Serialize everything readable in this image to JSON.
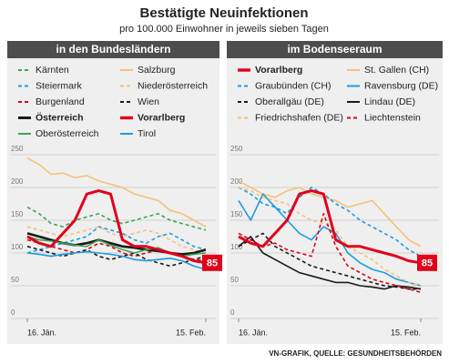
{
  "title": "Bestätigte Neuinfektionen",
  "subtitle": "pro 100.000 Einwohner in jeweils sieben Tagen",
  "source": "VN-GRAFIK, QUELLE: GESUNDHEITSBEHÖRDEN",
  "chart_data": [
    {
      "type": "line",
      "title": "in den Bundesländern",
      "categories": [
        "16. Jän.",
        null,
        null,
        null,
        null,
        null,
        null,
        null,
        null,
        null,
        null,
        null,
        null,
        null,
        null,
        "15. Feb."
      ],
      "ylim": [
        0,
        250
      ],
      "yticks": [
        0,
        50,
        100,
        150,
        200,
        250
      ],
      "grid": true,
      "series": [
        {
          "name": "Kärnten",
          "color": "#3aa655",
          "style": "dashed",
          "values": [
            170,
            160,
            145,
            140,
            150,
            155,
            160,
            150,
            145,
            150,
            155,
            160,
            150,
            145,
            140,
            135
          ]
        },
        {
          "name": "Salzburg",
          "color": "#f5c27a",
          "style": "solid",
          "values": [
            245,
            235,
            220,
            222,
            215,
            218,
            210,
            205,
            200,
            190,
            185,
            180,
            165,
            160,
            150,
            140
          ]
        },
        {
          "name": "Steiermark",
          "color": "#1e9be0",
          "style": "dashed",
          "values": [
            100,
            105,
            110,
            115,
            120,
            125,
            140,
            135,
            130,
            120,
            115,
            125,
            130,
            120,
            110,
            105
          ]
        },
        {
          "name": "Niederösterreich",
          "color": "#f5c27a",
          "style": "dashed",
          "values": [
            140,
            135,
            130,
            125,
            130,
            135,
            140,
            130,
            125,
            130,
            135,
            130,
            120,
            110,
            105,
            100
          ]
        },
        {
          "name": "Burgenland",
          "color": "#e2001a",
          "style": "dashed",
          "values": [
            120,
            115,
            110,
            105,
            100,
            105,
            115,
            110,
            100,
            95,
            100,
            105,
            100,
            95,
            90,
            88
          ]
        },
        {
          "name": "Wien",
          "color": "#1a1a1a",
          "style": "dashed",
          "values": [
            110,
            105,
            100,
            95,
            100,
            105,
            95,
            90,
            95,
            100,
            90,
            85,
            80,
            85,
            90,
            95
          ]
        },
        {
          "name": "Österreich",
          "color": "#1a1a1a",
          "style": "bold",
          "values": [
            130,
            125,
            120,
            115,
            112,
            115,
            120,
            115,
            110,
            108,
            105,
            103,
            100,
            98,
            100,
            105
          ]
        },
        {
          "name": "Vorarlberg",
          "color": "#e2001a",
          "style": "highlight",
          "values": [
            125,
            115,
            110,
            130,
            150,
            190,
            195,
            190,
            120,
            110,
            110,
            105,
            100,
            95,
            88,
            85
          ]
        },
        {
          "name": "Oberösterreich",
          "color": "#3aa655",
          "style": "solid",
          "values": [
            125,
            120,
            118,
            115,
            112,
            110,
            120,
            112,
            105,
            100,
            105,
            108,
            100,
            95,
            98,
            100
          ]
        },
        {
          "name": "Tirol",
          "color": "#1e9be0",
          "style": "solid",
          "values": [
            100,
            98,
            95,
            98,
            100,
            102,
            100,
            98,
            95,
            90,
            88,
            90,
            92,
            88,
            80,
            75
          ]
        }
      ]
    },
    {
      "type": "line",
      "title": "im Bodenseeraum",
      "categories": [
        "16. Jän.",
        null,
        null,
        null,
        null,
        null,
        null,
        null,
        null,
        null,
        null,
        null,
        null,
        null,
        null,
        "15. Feb."
      ],
      "ylim": [
        0,
        250
      ],
      "yticks": [
        0,
        50,
        100,
        150,
        200,
        250
      ],
      "grid": true,
      "series": [
        {
          "name": "Vorarlberg",
          "color": "#e2001a",
          "style": "highlight",
          "values": [
            125,
            115,
            110,
            130,
            150,
            190,
            195,
            190,
            120,
            110,
            110,
            105,
            100,
            95,
            88,
            85
          ]
        },
        {
          "name": "St. Gallen (CH)",
          "color": "#f5c27a",
          "style": "solid",
          "values": [
            210,
            200,
            190,
            185,
            195,
            200,
            190,
            185,
            180,
            170,
            175,
            180,
            160,
            140,
            120,
            110
          ]
        },
        {
          "name": "Graubünden (CH)",
          "color": "#1e9be0",
          "style": "dashed",
          "values": [
            200,
            190,
            175,
            170,
            160,
            185,
            200,
            190,
            175,
            165,
            150,
            140,
            130,
            120,
            105,
            95
          ]
        },
        {
          "name": "Ravensburg (DE)",
          "color": "#1e9be0",
          "style": "solid",
          "values": [
            180,
            150,
            190,
            170,
            150,
            130,
            120,
            140,
            130,
            100,
            85,
            75,
            70,
            60,
            55,
            50
          ]
        },
        {
          "name": "Oberallgäu (DE)",
          "color": "#1a1a1a",
          "style": "dashed",
          "values": [
            110,
            120,
            130,
            110,
            100,
            90,
            80,
            75,
            70,
            65,
            60,
            55,
            50,
            48,
            45,
            45
          ]
        },
        {
          "name": "Lindau (DE)",
          "color": "#1a1a1a",
          "style": "solid",
          "values": [
            110,
            125,
            100,
            90,
            80,
            70,
            65,
            60,
            55,
            55,
            50,
            48,
            45,
            50,
            48,
            45
          ]
        },
        {
          "name": "Friedrichshafen (DE)",
          "color": "#f5c27a",
          "style": "dashed",
          "values": [
            200,
            195,
            185,
            180,
            175,
            160,
            150,
            145,
            135,
            110,
            100,
            90,
            75,
            65,
            55,
            50
          ]
        },
        {
          "name": "Liechtenstein",
          "color": "#e2001a",
          "style": "dashed",
          "values": [
            130,
            120,
            110,
            115,
            105,
            100,
            95,
            160,
            110,
            80,
            70,
            60,
            55,
            50,
            45,
            40
          ]
        }
      ]
    }
  ]
}
